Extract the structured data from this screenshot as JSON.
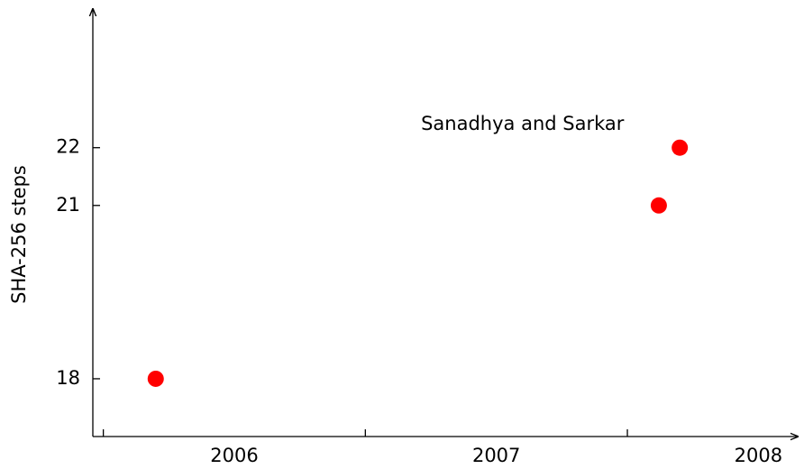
{
  "chart_data": {
    "type": "scatter",
    "y_label": "SHA-256 steps",
    "x": [
      2006.2,
      2008.12,
      2008.2
    ],
    "values": [
      18,
      21,
      22
    ],
    "color": "#ff0000",
    "xlim": [
      2005.96,
      2008.65
    ],
    "xticks": [
      {
        "value": 2006.5,
        "label": "2006"
      },
      {
        "value": 2007.5,
        "label": "2007"
      },
      {
        "value": 2008.5,
        "label": "2008"
      }
    ],
    "xminorticks": [
      2006,
      2007,
      2008
    ],
    "ylim": [
      17,
      24.4
    ],
    "yticks": [
      18,
      21,
      22
    ],
    "annotations": [
      {
        "text": "Sanadhya and Sarkar",
        "x": 2007.6,
        "y": 22.4
      }
    ]
  }
}
